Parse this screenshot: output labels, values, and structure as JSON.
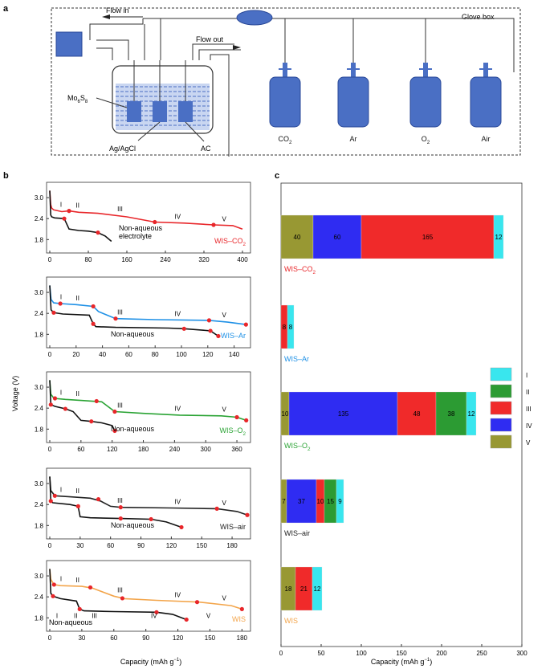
{
  "panel_a": {
    "label": "a",
    "glove_box": "Glove box",
    "flow_in": "Flow in",
    "flow_out": "Flow out",
    "mo_label": "Mo",
    "mo_sub1": "6",
    "mo_mid": "S",
    "mo_sub2": "8",
    "ref_electrode": "Ag/AgCl",
    "counter_electrode": "AC",
    "cylinders": [
      {
        "name": "CO",
        "sub": "2"
      },
      {
        "name": "Ar",
        "sub": ""
      },
      {
        "name": "O",
        "sub": "2"
      },
      {
        "name": "Air",
        "sub": ""
      }
    ]
  },
  "panel_b": {
    "label": "b",
    "ylabel": "Voltage (V)",
    "xlabel": "Capacity (mAh g",
    "xlabel_sup": "−1",
    "xlabel_close": ")",
    "stages": [
      "I",
      "II",
      "III",
      "IV",
      "V"
    ]
  },
  "panel_c": {
    "label": "c",
    "xlabel": "Capacity (mAh g",
    "xlabel_sup": "−1",
    "xlabel_close": ")",
    "legend": [
      "I",
      "II",
      "III",
      "IV",
      "V"
    ]
  },
  "colors": {
    "co2": "#e8262a",
    "ar": "#1e90e6",
    "o2": "#2aa334",
    "air": "#222222",
    "wis": "#f3a54b",
    "stageI": "#39e6ee",
    "stageII": "#2c9b33",
    "stageIII": "#f02a2a",
    "stageIV": "#2f2cf2",
    "stageV": "#989833",
    "apparatus": "#4a6fc4"
  },
  "chart_data": [
    {
      "type": "line",
      "panel": "b1",
      "title": "WIS–CO2",
      "legend": "WIS–CO",
      "legend_sub": "2",
      "secondary_label_1": "Non-aqueous",
      "secondary_label_2": "electrolyte",
      "xticks": [
        "0",
        "80",
        "160",
        "240",
        "320",
        "400"
      ],
      "yticks": [
        "3.0",
        "2.4",
        "1.8"
      ],
      "xlim": [
        0,
        410
      ],
      "ylim": [
        1.6,
        3.3
      ],
      "series": [
        {
          "name": "WIS–CO2",
          "x": [
            0,
            2,
            4,
            8,
            25,
            40,
            60,
            100,
            160,
            218,
            280,
            340,
            380,
            400
          ],
          "y": [
            3.2,
            2.8,
            2.7,
            2.65,
            2.6,
            2.62,
            2.58,
            2.55,
            2.45,
            2.3,
            2.27,
            2.22,
            2.2,
            2.1
          ]
        },
        {
          "name": "Non-aqueous",
          "x": [
            0,
            2,
            4,
            10,
            30,
            40,
            60,
            80,
            100,
            115,
            128
          ],
          "y": [
            3.2,
            2.5,
            2.45,
            2.42,
            2.4,
            2.1,
            2.06,
            2.04,
            2.0,
            1.9,
            1.75
          ]
        }
      ],
      "markers": {
        "WIS–CO2": [
          [
            40,
            2.62
          ],
          [
            218,
            2.3
          ],
          [
            340,
            2.22
          ]
        ],
        "Non-aqueous": [
          [
            30,
            2.4
          ],
          [
            100,
            2.0
          ]
        ]
      },
      "stage_labels": [
        "I",
        "II",
        "III",
        "IV",
        "V"
      ]
    },
    {
      "type": "line",
      "panel": "b2",
      "title": "WIS–Ar",
      "legend": "WIS–Ar",
      "legend_sub": "",
      "secondary_label_1": "Non-aqueous",
      "xticks": [
        "0",
        "20",
        "40",
        "60",
        "80",
        "100",
        "120",
        "140"
      ],
      "yticks": [
        "3.0",
        "2.4",
        "1.8"
      ],
      "xlim": [
        0,
        150
      ],
      "ylim": [
        1.6,
        3.3
      ],
      "series": [
        {
          "name": "WIS–Ar",
          "x": [
            0,
            1,
            3,
            8,
            20,
            33,
            37,
            50,
            80,
            121,
            135,
            149
          ],
          "y": [
            3.2,
            2.8,
            2.7,
            2.68,
            2.65,
            2.6,
            2.45,
            2.25,
            2.22,
            2.2,
            2.15,
            2.08
          ]
        },
        {
          "name": "Non-aqueous",
          "x": [
            0,
            1,
            3,
            10,
            30,
            33,
            35,
            50,
            90,
            102,
            122,
            128
          ],
          "y": [
            3.2,
            2.5,
            2.42,
            2.38,
            2.35,
            2.1,
            2.02,
            2.0,
            1.98,
            1.96,
            1.9,
            1.75
          ]
        }
      ],
      "markers": {
        "WIS–Ar": [
          [
            8,
            2.68
          ],
          [
            33,
            2.6
          ],
          [
            50,
            2.25
          ],
          [
            121,
            2.2
          ],
          [
            149,
            2.08
          ]
        ],
        "Non-aqueous": [
          [
            3,
            2.42
          ],
          [
            33,
            2.1
          ],
          [
            102,
            1.96
          ],
          [
            122,
            1.9
          ],
          [
            128,
            1.75
          ]
        ]
      },
      "stage_labels": [
        "I",
        "II",
        "III",
        "IV",
        "V"
      ]
    },
    {
      "type": "line",
      "panel": "b3",
      "title": "WIS–O2",
      "legend": "WIS–O",
      "legend_sub": "2",
      "secondary_label_1": "Non-aqueous",
      "xticks": [
        "0",
        "60",
        "120",
        "180",
        "240",
        "300",
        "360"
      ],
      "yticks": [
        "3.0",
        "2.4",
        "1.8"
      ],
      "xlim": [
        0,
        380
      ],
      "ylim": [
        1.6,
        3.3
      ],
      "series": [
        {
          "name": "WIS–O2",
          "x": [
            0,
            2,
            8,
            30,
            60,
            100,
            125,
            180,
            250,
            330,
            360,
            378
          ],
          "y": [
            3.2,
            2.8,
            2.68,
            2.65,
            2.62,
            2.58,
            2.3,
            2.25,
            2.2,
            2.18,
            2.14,
            2.05
          ]
        },
        {
          "name": "Non-aqueous",
          "x": [
            0,
            2,
            10,
            30,
            45,
            60,
            80,
            100,
            120,
            125
          ],
          "y": [
            3.2,
            2.5,
            2.45,
            2.38,
            2.3,
            2.05,
            2.02,
            1.98,
            1.9,
            1.75
          ]
        }
      ],
      "markers": {
        "WIS–O2": [
          [
            10,
            2.68
          ],
          [
            90,
            2.6
          ],
          [
            125,
            2.3
          ],
          [
            360,
            2.14
          ],
          [
            378,
            2.05
          ]
        ],
        "Non-aqueous": [
          [
            2,
            2.5
          ],
          [
            30,
            2.38
          ],
          [
            80,
            2.02
          ],
          [
            125,
            1.75
          ]
        ]
      },
      "stage_labels": [
        "I",
        "II",
        "III",
        "IV",
        "V"
      ]
    },
    {
      "type": "line",
      "panel": "b4",
      "title": "WIS–air",
      "legend": "WIS–air",
      "legend_sub": "",
      "secondary_label_1": "Non-aqueous",
      "xticks": [
        "0",
        "30",
        "60",
        "90",
        "120",
        "150",
        "180"
      ],
      "yticks": [
        "3.0",
        "2.4",
        "1.8"
      ],
      "xlim": [
        0,
        195
      ],
      "ylim": [
        1.6,
        3.3
      ],
      "series": [
        {
          "name": "WIS–air",
          "x": [
            0,
            1,
            5,
            20,
            40,
            50,
            60,
            70,
            120,
            165,
            185,
            195
          ],
          "y": [
            3.2,
            2.8,
            2.65,
            2.62,
            2.58,
            2.5,
            2.35,
            2.32,
            2.3,
            2.28,
            2.2,
            2.1
          ]
        },
        {
          "name": "Non-aqueous",
          "x": [
            0,
            1,
            3,
            20,
            28,
            30,
            40,
            70,
            100,
            115,
            130
          ],
          "y": [
            3.2,
            2.5,
            2.45,
            2.4,
            2.35,
            2.05,
            2.02,
            2.0,
            1.98,
            1.9,
            1.75
          ]
        }
      ],
      "markers": {
        "WIS–air": [
          [
            5,
            2.65
          ],
          [
            48,
            2.55
          ],
          [
            70,
            2.32
          ],
          [
            165,
            2.28
          ],
          [
            195,
            2.1
          ]
        ],
        "Non-aqueous": [
          [
            1,
            2.5
          ],
          [
            28,
            2.35
          ],
          [
            70,
            2.0
          ],
          [
            100,
            1.98
          ],
          [
            130,
            1.75
          ]
        ]
      },
      "stage_labels": [
        "I",
        "II",
        "III",
        "IV",
        "V"
      ]
    },
    {
      "type": "line",
      "panel": "b5",
      "title": "WIS",
      "legend": "WIS",
      "legend_sub": "",
      "secondary_label_1": "Non-aqueous",
      "xticks": [
        "0",
        "30",
        "60",
        "90",
        "120",
        "150",
        "180"
      ],
      "yticks": [
        "3.0",
        "2.4",
        "1.8"
      ],
      "xlim": [
        0,
        185
      ],
      "ylim": [
        1.6,
        3.3
      ],
      "series": [
        {
          "name": "WIS",
          "x": [
            0,
            1,
            4,
            10,
            30,
            40,
            60,
            70,
            100,
            140,
            170,
            180
          ],
          "y": [
            3.2,
            2.9,
            2.75,
            2.72,
            2.7,
            2.65,
            2.42,
            2.35,
            2.3,
            2.25,
            2.15,
            2.05
          ]
        },
        {
          "name": "Non-aqueous",
          "x": [
            0,
            1,
            3,
            10,
            25,
            28,
            32,
            60,
            100,
            115,
            128
          ],
          "y": [
            3.2,
            2.5,
            2.42,
            2.35,
            2.28,
            2.05,
            2.0,
            1.98,
            1.96,
            1.9,
            1.75
          ]
        }
      ],
      "markers": {
        "WIS": [
          [
            4,
            2.75
          ],
          [
            38,
            2.67
          ],
          [
            68,
            2.36
          ],
          [
            138,
            2.25
          ],
          [
            180,
            2.05
          ]
        ],
        "Non-aqueous": [
          [
            3,
            2.42
          ],
          [
            28,
            2.05
          ],
          [
            100,
            1.96
          ],
          [
            128,
            1.75
          ]
        ]
      },
      "stage_labels": [
        "I",
        "II",
        "III",
        "IV",
        "V"
      ],
      "secondary_stage_labels": [
        "I",
        "II",
        "III",
        "IV",
        "V"
      ]
    },
    {
      "type": "bar",
      "panel": "c",
      "orientation": "horizontal",
      "stacked": true,
      "xlabel": "Capacity (mAh g−1)",
      "xticks": [
        "0",
        "50",
        "100",
        "150",
        "200",
        "250",
        "300"
      ],
      "xlim": [
        0,
        300
      ],
      "categories": [
        "WIS–CO2",
        "WIS–Ar",
        "WIS–O2",
        "WIS–air",
        "WIS"
      ],
      "category_labels": [
        {
          "text": "WIS–CO",
          "sub": "2"
        },
        {
          "text": "WIS–Ar",
          "sub": ""
        },
        {
          "text": "WIS–O",
          "sub": "2"
        },
        {
          "text": "WIS–air",
          "sub": ""
        },
        {
          "text": "WIS",
          "sub": ""
        }
      ],
      "series": [
        {
          "name": "V",
          "values": [
            40,
            0,
            10,
            7,
            18
          ]
        },
        {
          "name": "IV",
          "values": [
            60,
            0,
            135,
            37,
            0
          ]
        },
        {
          "name": "III",
          "values": [
            165,
            8,
            48,
            10,
            21
          ]
        },
        {
          "name": "II",
          "values": [
            0,
            0,
            38,
            15,
            0
          ]
        },
        {
          "name": "I",
          "values": [
            12,
            8,
            12,
            9,
            12
          ]
        }
      ],
      "legend_position": "right"
    }
  ]
}
